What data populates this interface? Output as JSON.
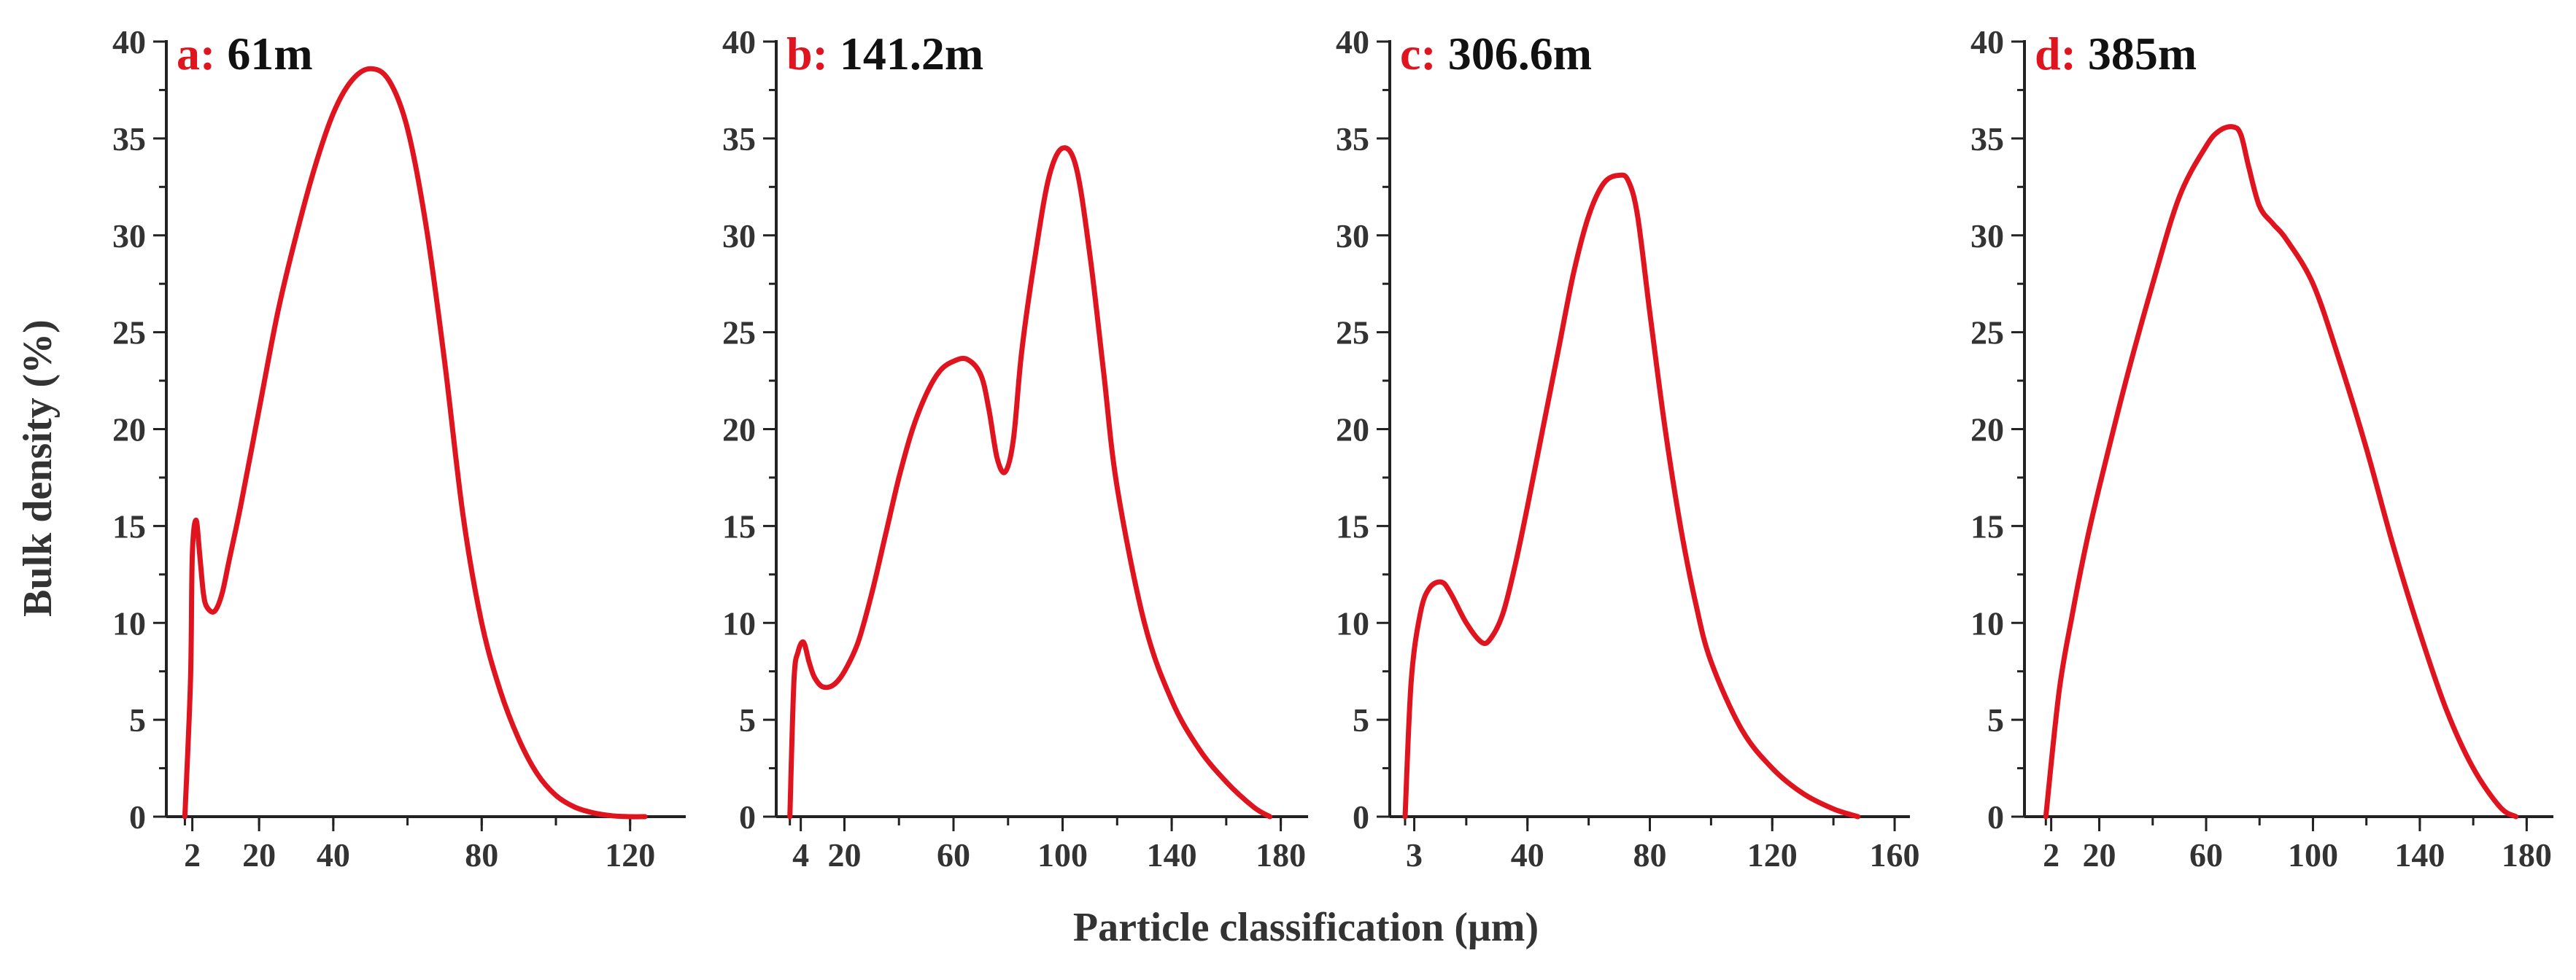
{
  "chart_data": [
    {
      "type": "line",
      "title_prefix": "a:",
      "title_value": "61m",
      "xlabel": "Particle classification (μm)",
      "ylabel": "Bulk density (%)",
      "xlim": [
        -5,
        135
      ],
      "ylim": [
        0,
        40
      ],
      "yticks": [
        0,
        5,
        10,
        15,
        20,
        25,
        30,
        35,
        40
      ],
      "xticks": [
        2,
        20,
        40,
        80,
        120
      ],
      "series": [
        {
          "name": "a: 61m",
          "x": [
            0,
            1.5,
            2,
            3,
            4,
            5,
            6,
            8,
            10,
            12,
            15,
            20,
            25,
            30,
            35,
            40,
            45,
            50,
            55,
            60,
            65,
            70,
            75,
            80,
            85,
            90,
            95,
            100,
            105,
            110,
            115,
            120,
            124
          ],
          "y": [
            0,
            7,
            13.5,
            15.3,
            13.5,
            11.5,
            10.8,
            10.6,
            11.5,
            13.3,
            16,
            21,
            26,
            30,
            33.5,
            36.3,
            38,
            38.6,
            38,
            35.5,
            30.5,
            23.5,
            15.5,
            10,
            6.5,
            4,
            2.2,
            1.1,
            0.5,
            0.2,
            0.05,
            0,
            0
          ]
        }
      ]
    },
    {
      "type": "line",
      "title_prefix": "b:",
      "title_value": "141.2m",
      "xlabel": "Particle classification (μm)",
      "ylabel": "Bulk density (%)",
      "xlim": [
        -5,
        190
      ],
      "ylim": [
        0,
        40
      ],
      "yticks": [
        0,
        5,
        10,
        15,
        20,
        25,
        30,
        35,
        40
      ],
      "xticks": [
        4,
        20,
        60,
        100,
        140,
        180
      ],
      "series": [
        {
          "name": "b: 141.2m",
          "x": [
            0,
            1.5,
            3,
            5,
            7,
            9,
            12,
            16,
            20,
            25,
            30,
            35,
            40,
            45,
            50,
            55,
            60,
            65,
            70,
            73,
            76,
            79,
            82,
            85,
            90,
            95,
            100,
            105,
            110,
            115,
            120,
            130,
            140,
            150,
            160,
            170,
            176
          ],
          "y": [
            0,
            7,
            8.5,
            9,
            8,
            7.2,
            6.7,
            6.8,
            7.5,
            9,
            11.5,
            14.5,
            17.5,
            20,
            21.8,
            23,
            23.5,
            23.6,
            22.8,
            21,
            18.5,
            17.8,
            19.5,
            24,
            29,
            33,
            34.5,
            33.5,
            29,
            23,
            17,
            10,
            6,
            3.5,
            1.8,
            0.5,
            0
          ]
        }
      ]
    },
    {
      "type": "line",
      "title_prefix": "c:",
      "title_value": "306.6m",
      "xlabel": "Particle classification (μm)",
      "ylabel": "Bulk density (%)",
      "xlim": [
        -5,
        165
      ],
      "ylim": [
        0,
        40
      ],
      "yticks": [
        0,
        5,
        10,
        15,
        20,
        25,
        30,
        35,
        40
      ],
      "xticks": [
        3,
        40,
        80,
        120,
        160
      ],
      "series": [
        {
          "name": "c: 306.6m",
          "x": [
            0,
            2,
            5,
            8,
            12,
            15,
            20,
            25,
            28,
            32,
            36,
            40,
            45,
            50,
            55,
            60,
            65,
            70,
            73,
            76,
            80,
            85,
            90,
            95,
            100,
            110,
            120,
            130,
            140,
            148
          ],
          "y": [
            0,
            7,
            10.5,
            11.8,
            12.1,
            11.5,
            10,
            9,
            9.2,
            10.5,
            13,
            16,
            20,
            24,
            28,
            31,
            32.7,
            33.1,
            32.8,
            31,
            26,
            20,
            15,
            11,
            8,
            4.5,
            2.5,
            1.2,
            0.4,
            0
          ]
        }
      ]
    },
    {
      "type": "line",
      "title_prefix": "d:",
      "title_value": "385m",
      "xlabel": "Particle classification (μm)",
      "ylabel": "Bulk density (%)",
      "xlim": [
        -8,
        190
      ],
      "ylim": [
        0,
        40
      ],
      "yticks": [
        0,
        5,
        10,
        15,
        20,
        25,
        30,
        35,
        40
      ],
      "xticks": [
        2,
        20,
        60,
        100,
        140,
        180
      ],
      "series": [
        {
          "name": "d: 385m",
          "x": [
            0,
            5,
            10,
            15,
            20,
            30,
            40,
            50,
            60,
            65,
            70,
            73,
            76,
            80,
            85,
            90,
            100,
            110,
            120,
            130,
            140,
            150,
            160,
            170,
            176
          ],
          "y": [
            0,
            6.5,
            10.5,
            14,
            17,
            22.5,
            27.5,
            32,
            34.6,
            35.4,
            35.6,
            35.2,
            33.5,
            31.5,
            30.6,
            29.8,
            27.5,
            23.5,
            19,
            14,
            9.5,
            5.5,
            2.5,
            0.5,
            0
          ]
        }
      ]
    }
  ],
  "colors": {
    "curve": "#e0141e",
    "panel_label": "#e0141e",
    "panel_value": "#111111",
    "axis": "#222222",
    "text": "#333333"
  },
  "shared": {
    "xlabel": "Particle classification (μm)",
    "ylabel": "Bulk density (%)"
  }
}
